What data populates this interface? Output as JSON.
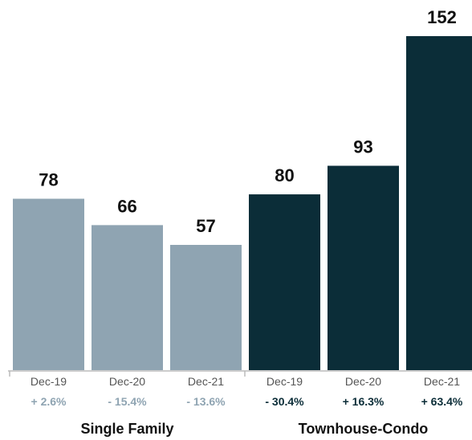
{
  "chart_data": {
    "type": "bar",
    "title": "",
    "xlabel": "",
    "ylabel": "",
    "ylim": [
      0,
      152
    ],
    "groups": [
      {
        "name": "Single Family",
        "color": "#8fa4b2",
        "pct_color": "#8fa4b2",
        "bars": [
          {
            "label": "Dec-19",
            "value": 78,
            "change": "+ 2.6%"
          },
          {
            "label": "Dec-20",
            "value": 66,
            "change": "- 15.4%"
          },
          {
            "label": "Dec-21",
            "value": 57,
            "change": "- 13.6%"
          }
        ]
      },
      {
        "name": "Townhouse-Condo",
        "color": "#0b2d38",
        "pct_color": "#0b2d38",
        "bars": [
          {
            "label": "Dec-19",
            "value": 80,
            "change": "- 30.4%"
          },
          {
            "label": "Dec-20",
            "value": 93,
            "change": "+ 16.3%"
          },
          {
            "label": "Dec-21",
            "value": 152,
            "change": "+ 63.4%"
          }
        ]
      }
    ],
    "axis_color": "#bbbbbb",
    "grid": false,
    "legend": "none"
  }
}
